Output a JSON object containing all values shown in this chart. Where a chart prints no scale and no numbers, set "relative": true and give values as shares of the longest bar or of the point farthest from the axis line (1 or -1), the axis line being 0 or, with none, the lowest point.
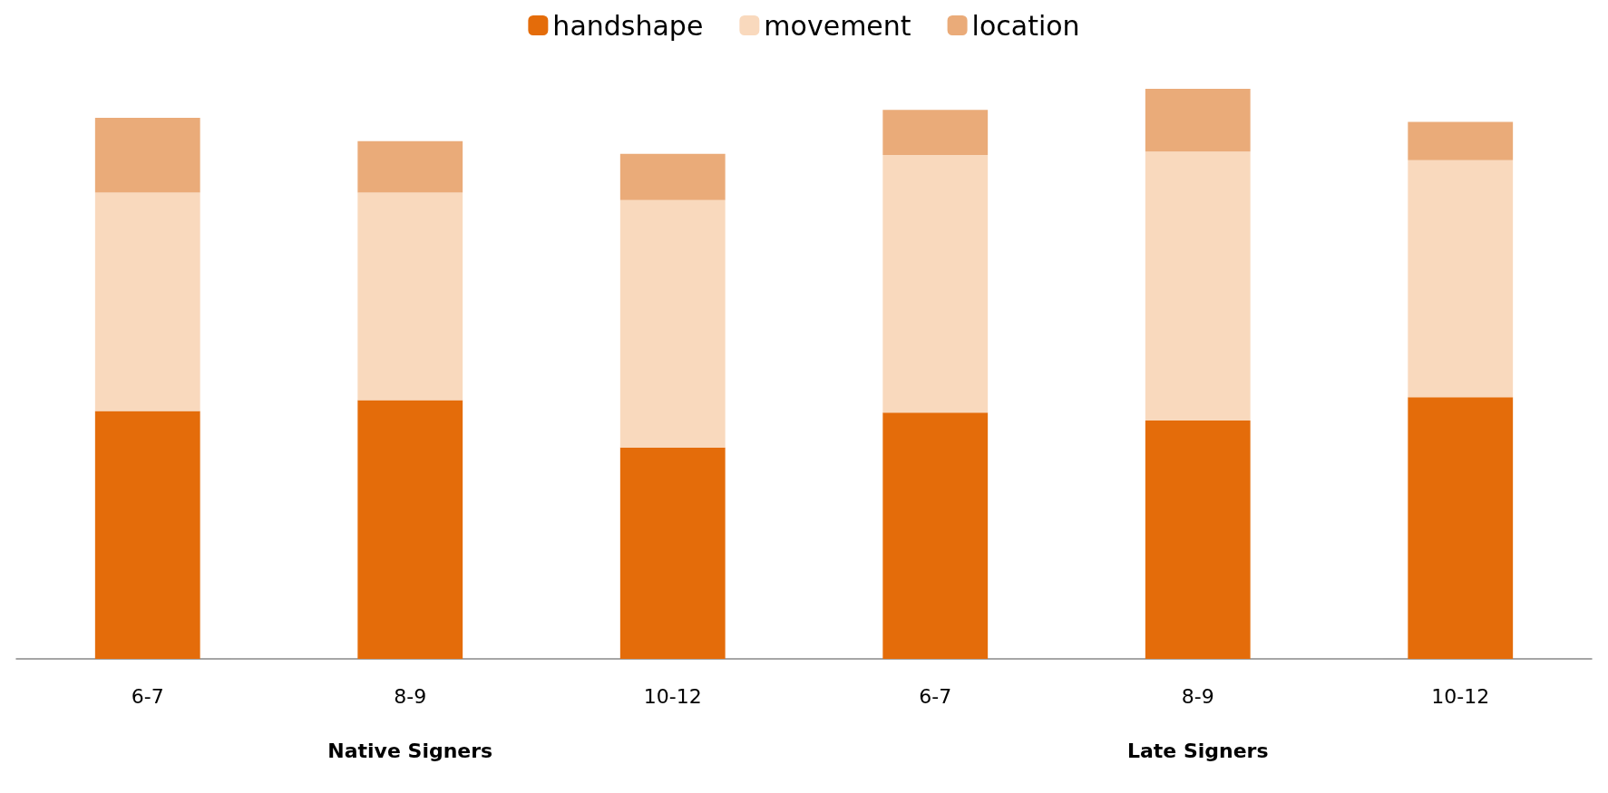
{
  "chart_data": {
    "type": "bar",
    "stacked": true,
    "relative": true,
    "categories": [
      "6-7",
      "8-9",
      "10-12",
      "6-7",
      "8-9",
      "10-12"
    ],
    "series": [
      {
        "name": "handshape",
        "color": "#e46c0a",
        "values": [
          0.435,
          0.454,
          0.371,
          0.432,
          0.418,
          0.459
        ]
      },
      {
        "name": "movement",
        "color": "#f9d9bd",
        "values": [
          0.383,
          0.364,
          0.434,
          0.452,
          0.472,
          0.416
        ]
      },
      {
        "name": "location",
        "color": "#eaab79",
        "values": [
          0.131,
          0.09,
          0.081,
          0.079,
          0.11,
          0.067
        ]
      }
    ],
    "annotations": [
      "Native Signers",
      "Late Signers"
    ],
    "legend": "top"
  }
}
